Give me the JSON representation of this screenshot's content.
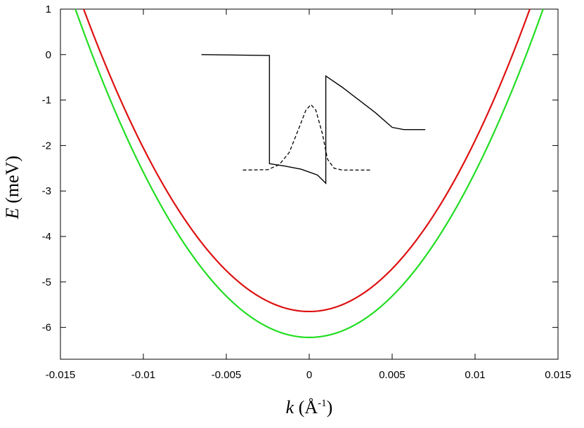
{
  "chart_data": {
    "type": "line",
    "xlabel": {
      "var": "k",
      "unit_open": "(Å",
      "unit_exp": "-1",
      "unit_close": ")"
    },
    "ylabel": {
      "var": "E",
      "unit": "(meV)"
    },
    "xlim": [
      -0.015,
      0.015
    ],
    "ylim": [
      -6.7,
      1
    ],
    "xticks": [
      "-0.015",
      "-0.01",
      "-0.005",
      "0",
      "0.005",
      "0.01",
      "0.015"
    ],
    "yticks": [
      "1",
      "0",
      "-1",
      "-2",
      "-3",
      "-4",
      "-5",
      "-6"
    ],
    "grid": false,
    "series": [
      {
        "color": "#dd1111",
        "x": [
          -0.0136,
          -0.012,
          -0.01,
          -0.008,
          -0.006,
          -0.004,
          -0.002,
          0,
          0.002,
          0.004,
          0.006,
          0.008,
          0.01,
          0.012,
          0.0133
        ],
        "y": [
          1.0,
          -0.4,
          -2.02,
          -3.45,
          -4.54,
          -5.19,
          -5.55,
          -5.65,
          -5.55,
          -5.19,
          -4.54,
          -3.45,
          -2.02,
          -0.4,
          1.0
        ]
      },
      {
        "color": "#22dd22",
        "x": [
          -0.0141,
          -0.012,
          -0.01,
          -0.008,
          -0.006,
          -0.004,
          -0.002,
          0,
          0.002,
          0.004,
          0.006,
          0.008,
          0.01,
          0.012,
          0.0141
        ],
        "y": [
          1.0,
          -1.02,
          -2.64,
          -4.07,
          -5.13,
          -5.79,
          -6.12,
          -6.22,
          -6.12,
          -5.79,
          -5.13,
          -4.07,
          -2.64,
          -1.02,
          1.0
        ]
      }
    ],
    "inset": {
      "description_free": true,
      "potential_profile": [
        [
          -0.0065,
          0.0
        ],
        [
          -0.0024,
          -0.02
        ],
        [
          -0.0024,
          -2.4
        ],
        [
          -0.0015,
          -2.45
        ],
        [
          -0.0005,
          -2.52
        ],
        [
          0.0005,
          -2.65
        ],
        [
          0.001,
          -2.83
        ],
        [
          0.001,
          -0.47
        ],
        [
          0.002,
          -0.72
        ],
        [
          0.003,
          -1.0
        ],
        [
          0.004,
          -1.28
        ],
        [
          0.005,
          -1.6
        ],
        [
          0.0057,
          -1.65
        ],
        [
          0.007,
          -1.65
        ]
      ],
      "wavefunction": [
        [
          -0.004,
          -2.54
        ],
        [
          -0.0025,
          -2.53
        ],
        [
          -0.0018,
          -2.42
        ],
        [
          -0.0012,
          -2.15
        ],
        [
          -0.0006,
          -1.6
        ],
        [
          -0.0002,
          -1.22
        ],
        [
          0.0001,
          -1.1
        ],
        [
          0.0004,
          -1.22
        ],
        [
          0.0008,
          -1.75
        ],
        [
          0.0011,
          -2.3
        ],
        [
          0.0015,
          -2.5
        ],
        [
          0.002,
          -2.54
        ],
        [
          0.0037,
          -2.54
        ]
      ]
    }
  }
}
